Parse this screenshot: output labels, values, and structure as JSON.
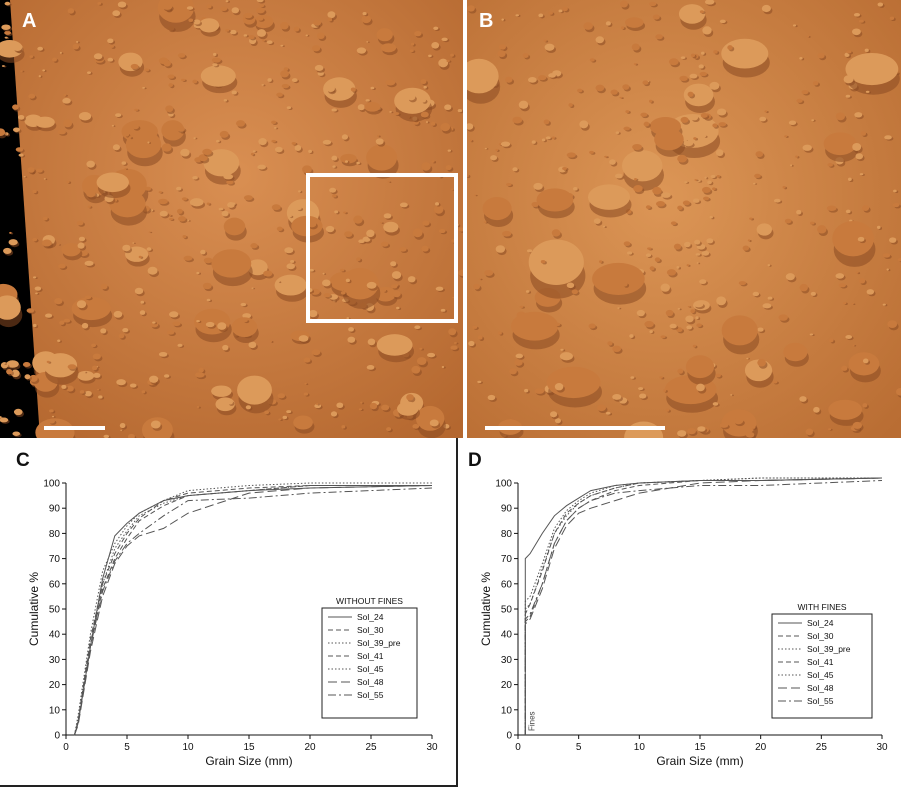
{
  "panels": {
    "a": {
      "letter": "A"
    },
    "b": {
      "letter": "B"
    },
    "c": {
      "letter": "C"
    },
    "d": {
      "letter": "D"
    }
  },
  "chart_data": [
    {
      "type": "line",
      "title": "",
      "xlabel": "Grain Size (mm)",
      "ylabel": "Cumulative %",
      "xlim": [
        0,
        30
      ],
      "ylim": [
        0,
        100
      ],
      "xticks": [
        0,
        5,
        10,
        15,
        20,
        25,
        30
      ],
      "yticks": [
        0,
        10,
        20,
        30,
        40,
        50,
        60,
        70,
        80,
        90,
        100
      ],
      "grid": false,
      "legend_title": "WITHOUT FINES",
      "legend_position": "right",
      "annotation": "",
      "series": [
        {
          "name": "Sol_24",
          "dash": "solid",
          "x": [
            0.7,
            1,
            2,
            3,
            4,
            5,
            6,
            8,
            10,
            15,
            20,
            30
          ],
          "y": [
            0,
            5,
            35,
            62,
            79,
            84,
            88,
            93,
            95,
            97,
            98,
            99
          ]
        },
        {
          "name": "Sol_30",
          "dash": "dashed",
          "x": [
            0.7,
            1,
            2,
            3,
            4,
            5,
            6,
            8,
            10,
            15,
            20,
            30
          ],
          "y": [
            0,
            6,
            38,
            60,
            72,
            80,
            86,
            93,
            96,
            98,
            99,
            99
          ]
        },
        {
          "name": "Sol_39_pre",
          "dash": "dotted",
          "x": [
            0.7,
            1,
            2,
            3,
            4,
            5,
            6,
            8,
            10,
            15,
            20,
            30
          ],
          "y": [
            0,
            8,
            40,
            65,
            76,
            83,
            88,
            93,
            97,
            99,
            100,
            100
          ]
        },
        {
          "name": "Sol_41",
          "dash": "dashed",
          "x": [
            0.7,
            1,
            2,
            3,
            4,
            5,
            6,
            8,
            10,
            15,
            20,
            30
          ],
          "y": [
            0,
            5,
            35,
            58,
            70,
            78,
            85,
            91,
            95,
            97,
            99,
            99
          ]
        },
        {
          "name": "Sol_45",
          "dash": "dotted",
          "x": [
            0.7,
            1,
            2,
            3,
            4,
            5,
            6,
            8,
            10,
            15,
            20,
            30
          ],
          "y": [
            0,
            6,
            36,
            60,
            74,
            81,
            87,
            92,
            95,
            97,
            99,
            99
          ]
        },
        {
          "name": "Sol_48",
          "dash": "longdash",
          "x": [
            0.7,
            1,
            2,
            3,
            4,
            5,
            6,
            8,
            10,
            15,
            20,
            30
          ],
          "y": [
            0,
            4,
            33,
            55,
            68,
            75,
            79,
            82,
            88,
            96,
            98,
            99
          ]
        },
        {
          "name": "Sol_55",
          "dash": "dashdot",
          "x": [
            0.7,
            1,
            2,
            3,
            4,
            5,
            6,
            8,
            10,
            15,
            20,
            30
          ],
          "y": [
            0,
            5,
            35,
            57,
            69,
            76,
            80,
            87,
            93,
            94,
            96,
            98
          ]
        }
      ]
    },
    {
      "type": "line",
      "title": "",
      "xlabel": "Grain Size (mm)",
      "ylabel": "Cumulative %",
      "xlim": [
        0,
        30
      ],
      "ylim": [
        0,
        100
      ],
      "xticks": [
        0,
        5,
        10,
        15,
        20,
        25,
        30
      ],
      "yticks": [
        0,
        10,
        20,
        30,
        40,
        50,
        60,
        70,
        80,
        90,
        100
      ],
      "grid": false,
      "legend_title": "WITH FINES",
      "legend_position": "right",
      "annotation": "Fines",
      "series": [
        {
          "name": "Sol_24",
          "dash": "solid",
          "x": [
            0.6,
            0.6,
            1,
            2,
            3,
            4,
            5,
            6,
            8,
            10,
            15,
            20,
            30
          ],
          "y": [
            0,
            70,
            72,
            80,
            87,
            91,
            94,
            97,
            99,
            100,
            101,
            101,
            102
          ]
        },
        {
          "name": "Sol_30",
          "dash": "dashed",
          "x": [
            0.6,
            0.6,
            1,
            2,
            3,
            4,
            5,
            6,
            8,
            10,
            15,
            20,
            30
          ],
          "y": [
            0,
            48,
            52,
            65,
            80,
            88,
            92,
            95,
            98,
            100,
            101,
            101,
            102
          ]
        },
        {
          "name": "Sol_39_pre",
          "dash": "dotted",
          "x": [
            0.6,
            0.6,
            1,
            2,
            3,
            4,
            5,
            6,
            8,
            10,
            15,
            20,
            30
          ],
          "y": [
            0,
            53,
            55,
            68,
            82,
            89,
            93,
            96,
            99,
            100,
            101,
            102,
            102
          ]
        },
        {
          "name": "Sol_41",
          "dash": "dashed",
          "x": [
            0.6,
            0.6,
            1,
            2,
            3,
            4,
            5,
            6,
            8,
            10,
            15,
            20,
            30
          ],
          "y": [
            0,
            45,
            47,
            60,
            76,
            85,
            90,
            93,
            97,
            99,
            101,
            101,
            102
          ]
        },
        {
          "name": "Sol_45",
          "dash": "dotted",
          "x": [
            0.6,
            0.6,
            1,
            2,
            3,
            4,
            5,
            6,
            8,
            10,
            15,
            20,
            30
          ],
          "y": [
            0,
            50,
            52,
            66,
            80,
            87,
            92,
            95,
            98,
            100,
            101,
            102,
            102
          ]
        },
        {
          "name": "Sol_48",
          "dash": "longdash",
          "x": [
            0.6,
            0.6,
            1,
            2,
            3,
            4,
            5,
            6,
            8,
            10,
            15,
            20,
            30
          ],
          "y": [
            0,
            44,
            46,
            58,
            74,
            83,
            88,
            90,
            93,
            96,
            100,
            101,
            102
          ]
        },
        {
          "name": "Sol_55",
          "dash": "dashdot",
          "x": [
            0.6,
            0.6,
            1,
            2,
            3,
            4,
            5,
            6,
            8,
            10,
            15,
            20,
            30
          ],
          "y": [
            0,
            46,
            48,
            60,
            76,
            85,
            90,
            93,
            96,
            97,
            99,
            99,
            101
          ]
        }
      ]
    }
  ],
  "colors": {
    "regolith": "#c87a3d",
    "regolith_light": "#dc9a5a",
    "regolith_dark": "#8a4a22",
    "line": "#555555",
    "axis": "#111111"
  }
}
